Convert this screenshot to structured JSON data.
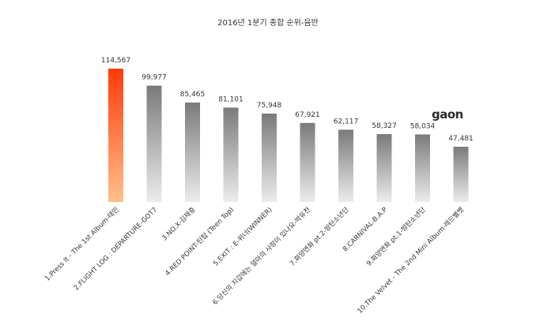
{
  "chart_data": {
    "type": "bar",
    "title": "2016년 1분기 종합 순위-음반",
    "categories": [
      "1.Press It - The 1st Album-태민",
      "2.FLIGHT LOG : DEPARTURE-GOT7",
      "3.NO.X-김재중",
      "4.RED POINT-틴탑 (Teen Top)",
      "5.EXIT : E-위너(WINNER)",
      "6.당신의 지갑에는 얼마의 사랑이 있나요-박유천",
      "7.화양연화 pt.2-방탄소년단",
      "8.CARNIVAL-B.A.P",
      "9.화양연화 pt.1-방탄소년단",
      "10.The Velvet - The 2nd Mini Album-레드벨벳"
    ],
    "values": [
      114567,
      99977,
      85465,
      81101,
      75948,
      67921,
      62117,
      58327,
      58034,
      47481
    ],
    "value_labels": [
      "114,567",
      "99,977",
      "85,465",
      "81,101",
      "75,948",
      "67,921",
      "62,117",
      "58,327",
      "58,034",
      "47,481"
    ],
    "ylim": [
      0,
      114567
    ],
    "grid": false,
    "highlight_colors": {
      "top": "#ff3a0a",
      "bottom": "#ffc08a"
    },
    "bar_colors": {
      "top": "#7a7a7a",
      "bottom": "#ececec"
    }
  },
  "logo": {
    "text": "gaon"
  }
}
